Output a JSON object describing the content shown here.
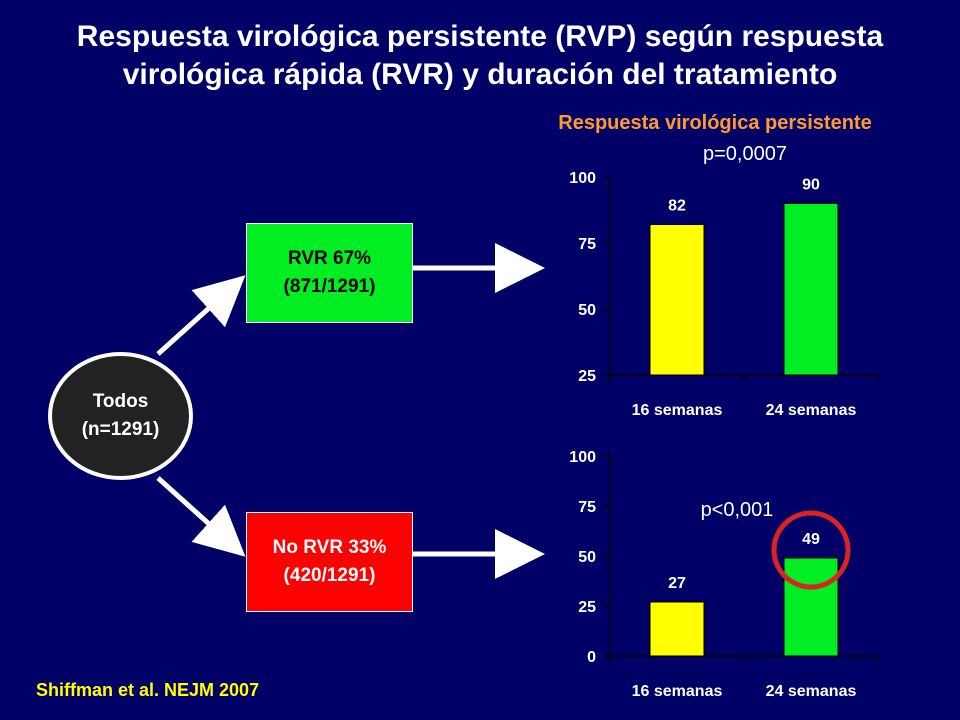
{
  "slide": {
    "title_line1": "Respuesta virológica persistente (RVP) según respuesta",
    "title_line2": "virológica rápida (RVR) y duración del tratamiento",
    "chart_heading": "Respuesta virológica persistente",
    "citation": "Shiffman et al. NEJM 2007"
  },
  "flow": {
    "root": {
      "line1": "Todos",
      "line2": "(n=1291)"
    },
    "rvr": {
      "line1": "RVR 67%",
      "line2": "(871/1291)",
      "color": "#00ee22"
    },
    "no_rvr": {
      "line1": "No RVR 33%",
      "line2": "(420/1291)",
      "color": "#ff0000"
    }
  },
  "colors": {
    "background": "#000066",
    "bar_16": "#ffff00",
    "bar_24": "#00ee22",
    "highlight_circle": "#dd2222",
    "heading": "#ff9933"
  },
  "chart_data": [
    {
      "type": "bar",
      "categories": [
        "16 semanas",
        "24 semanas"
      ],
      "values": [
        82,
        90
      ],
      "ylim": [
        25,
        100
      ],
      "yticks": [
        25,
        50,
        75,
        100
      ],
      "annotation": "p=0,0007",
      "xlabel": "",
      "ylabel": ""
    },
    {
      "type": "bar",
      "categories": [
        "16 semanas",
        "24 semanas"
      ],
      "values": [
        27,
        49
      ],
      "ylim": [
        0,
        100
      ],
      "yticks": [
        0,
        25,
        50,
        75,
        100
      ],
      "annotation": "p<0,001",
      "highlighted_index": 1,
      "xlabel": "",
      "ylabel": ""
    }
  ]
}
